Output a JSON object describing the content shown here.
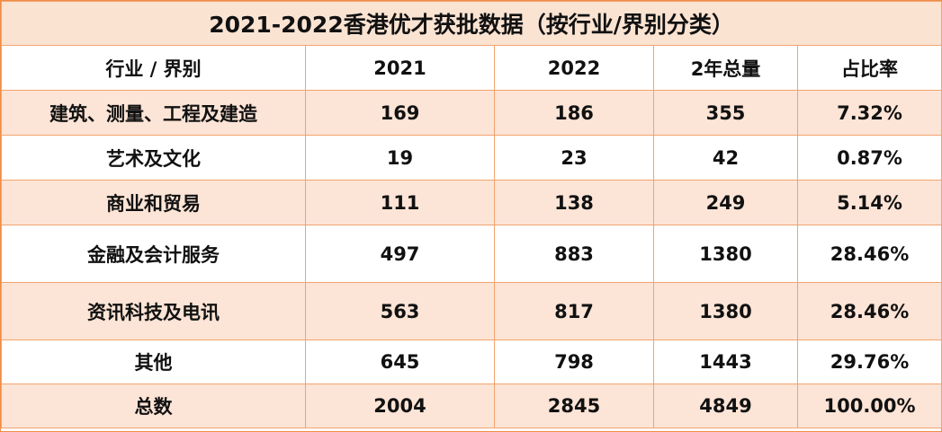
{
  "title": "2021-2022香港优才获批数据（按行业/界别分类）",
  "columns": [
    "行业 / 界别",
    "2021",
    "2022",
    "2年总量",
    "占比率"
  ],
  "rows": [
    {
      "category": "建筑、测量、工程及建造",
      "y2021": "169",
      "y2022": "186",
      "total": "355",
      "share": "7.32%"
    },
    {
      "category": "艺术及文化",
      "y2021": "19",
      "y2022": "23",
      "total": "42",
      "share": "0.87%"
    },
    {
      "category": "商业和贸易",
      "y2021": "111",
      "y2022": "138",
      "total": "249",
      "share": "5.14%"
    },
    {
      "category": "金融及会计服务",
      "y2021": "497",
      "y2022": "883",
      "total": "1380",
      "share": "28.46%"
    },
    {
      "category": "资讯科技及电讯",
      "y2021": "563",
      "y2022": "817",
      "total": "1380",
      "share": "28.46%"
    },
    {
      "category": "其他",
      "y2021": "645",
      "y2022": "798",
      "total": "1443",
      "share": "29.76%"
    },
    {
      "category": "总数",
      "y2021": "2004",
      "y2022": "2845",
      "total": "4849",
      "share": "100.00%"
    }
  ],
  "colors": {
    "border": "#f2a36e",
    "peach": "#fce4d6",
    "title_bg": "#fbe3d2"
  }
}
